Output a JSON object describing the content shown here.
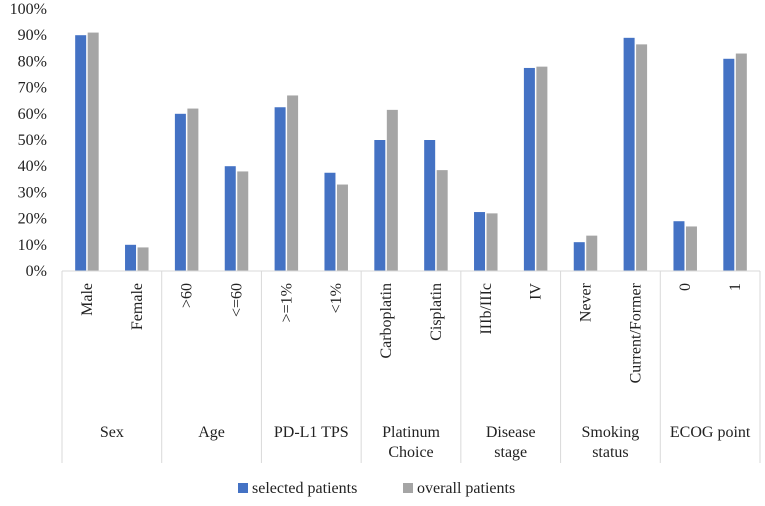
{
  "chart_data": {
    "type": "bar",
    "title": "",
    "xlabel": "",
    "ylabel": "",
    "ylim": [
      0,
      100
    ],
    "ytick_step": 10,
    "ytick_suffix": "%",
    "grid": false,
    "legend_position": "bottom",
    "categories": [
      "Male",
      "Female",
      ">60",
      "<=60",
      ">=1%",
      "<1%",
      "Carboplatin",
      "Cisplatin",
      "IIIb/IIIc",
      "IV",
      "Never",
      "Current/Former",
      "0",
      "1"
    ],
    "groups": [
      {
        "lines": [
          "Sex"
        ],
        "span": 2
      },
      {
        "lines": [
          "Age"
        ],
        "span": 2
      },
      {
        "lines": [
          "PD-L1 TPS"
        ],
        "span": 2
      },
      {
        "lines": [
          "Platinum",
          "Choice"
        ],
        "span": 2
      },
      {
        "lines": [
          "Disease",
          "stage"
        ],
        "span": 2
      },
      {
        "lines": [
          "Smoking",
          "status"
        ],
        "span": 2
      },
      {
        "lines": [
          "ECOG point"
        ],
        "span": 2
      }
    ],
    "series": [
      {
        "name": "selected patients",
        "color": "#4472C4",
        "values": [
          90,
          10,
          60,
          40,
          62.5,
          37.5,
          50,
          50,
          22.5,
          77.5,
          11,
          89,
          19,
          81
        ]
      },
      {
        "name": "overall patients",
        "color": "#A5A5A5",
        "values": [
          91,
          9,
          62,
          38,
          67,
          33,
          61.5,
          38.5,
          22,
          78,
          13.5,
          86.5,
          17,
          83
        ]
      }
    ]
  }
}
